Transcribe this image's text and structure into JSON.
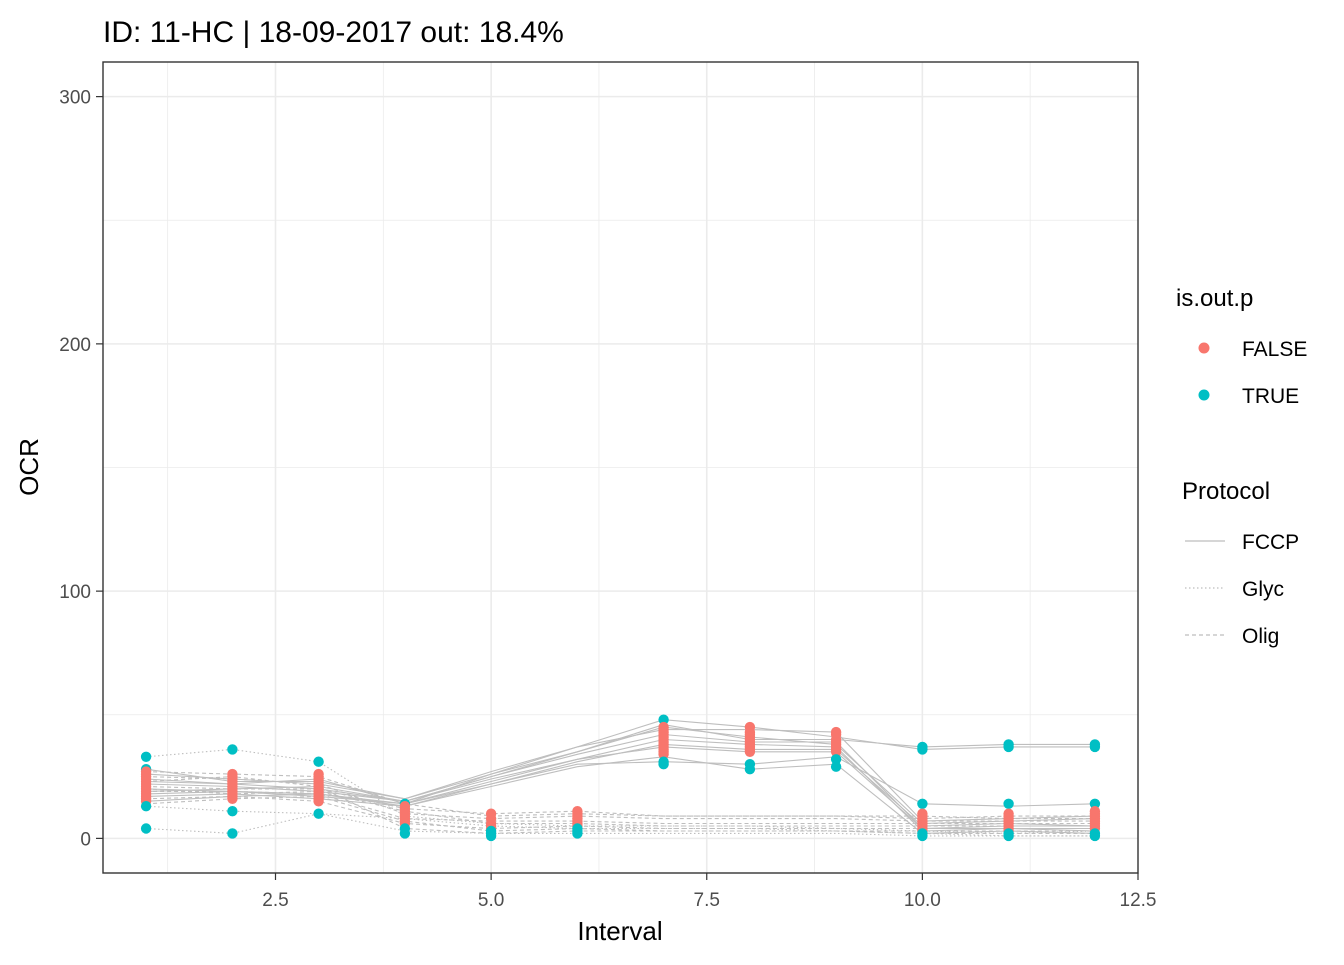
{
  "chart_data": {
    "type": "line",
    "title": "ID: 11-HC | 18-09-2017  out: 18.4%",
    "xlabel": "Interval",
    "ylabel": "OCR",
    "xlim": [
      0.5,
      12.5
    ],
    "ylim": [
      -14,
      314
    ],
    "x_ticks": [
      2.5,
      5.0,
      7.5,
      10.0,
      12.5
    ],
    "x_tick_labels": [
      "2.5",
      "5.0",
      "7.5",
      "10.0",
      "12.5"
    ],
    "y_ticks": [
      0,
      100,
      200,
      300
    ],
    "y_tick_labels": [
      "0",
      "100",
      "200",
      "300"
    ],
    "grid": true,
    "x": [
      1,
      2,
      3,
      4,
      5,
      6,
      7,
      8,
      9,
      10,
      11,
      12
    ],
    "series": [
      {
        "protocol": "FCCP",
        "values": [
          24,
          22,
          20,
          15,
          25,
          34,
          42,
          39,
          39,
          4,
          5,
          5
        ]
      },
      {
        "protocol": "FCCP",
        "values": [
          20,
          19,
          18,
          14,
          23,
          32,
          40,
          38,
          37,
          3,
          4,
          4
        ]
      },
      {
        "protocol": "FCCP",
        "values": [
          17,
          18,
          16,
          13,
          22,
          31,
          38,
          36,
          36,
          5,
          6,
          5
        ]
      },
      {
        "protocol": "FCCP",
        "values": [
          22,
          21,
          19,
          15,
          25,
          35,
          45,
          41,
          38,
          6,
          7,
          8
        ]
      },
      {
        "protocol": "FCCP",
        "values": [
          26,
          24,
          22,
          16,
          27,
          37,
          44,
          44,
          43,
          7,
          8,
          9
        ]
      },
      {
        "protocol": "FCCP",
        "values": [
          19,
          20,
          21,
          15,
          24,
          32,
          37,
          35,
          35,
          4,
          4,
          3
        ]
      },
      {
        "protocol": "FCCP",
        "values": [
          15,
          17,
          18,
          13,
          21,
          29,
          33,
          28,
          30,
          2,
          3,
          2
        ]
      },
      {
        "protocol": "FCCP",
        "values": [
          28,
          23,
          23,
          16,
          26,
          35,
          46,
          40,
          40,
          37,
          38,
          38
        ]
      },
      {
        "protocol": "FCCP",
        "values": [
          23,
          22,
          24,
          14,
          26,
          37,
          48,
          45,
          41,
          36,
          37,
          37
        ]
      },
      {
        "protocol": "FCCP",
        "values": [
          18,
          19,
          17,
          14,
          22,
          30,
          31,
          30,
          33,
          14,
          13,
          14
        ]
      },
      {
        "protocol": "Glyc",
        "values": [
          33,
          36,
          31,
          9,
          6,
          5,
          5,
          5,
          4,
          3,
          2,
          3
        ]
      },
      {
        "protocol": "Glyc",
        "values": [
          13,
          11,
          10,
          8,
          5,
          4,
          4,
          4,
          3,
          2,
          1,
          1
        ]
      },
      {
        "protocol": "Glyc",
        "values": [
          4,
          2,
          10,
          3,
          2,
          2,
          2,
          2,
          2,
          1,
          1,
          1
        ]
      },
      {
        "protocol": "Olig",
        "values": [
          25,
          24,
          22,
          10,
          8,
          9,
          8,
          8,
          8,
          7,
          7,
          7
        ]
      },
      {
        "protocol": "Olig",
        "values": [
          21,
          20,
          20,
          12,
          10,
          11,
          9,
          9,
          9,
          8,
          9,
          9
        ]
      },
      {
        "protocol": "Olig",
        "values": [
          19,
          19,
          18,
          8,
          7,
          7,
          6,
          6,
          6,
          6,
          6,
          6
        ]
      },
      {
        "protocol": "Olig",
        "values": [
          16,
          17,
          15,
          6,
          4,
          5,
          4,
          4,
          4,
          4,
          4,
          4
        ]
      },
      {
        "protocol": "Olig",
        "values": [
          23,
          25,
          21,
          4,
          2,
          3,
          3,
          3,
          3,
          2,
          2,
          2
        ]
      },
      {
        "protocol": "Olig",
        "values": [
          27,
          26,
          25,
          14,
          9,
          10,
          9,
          9,
          9,
          9,
          8,
          8
        ]
      },
      {
        "protocol": "Olig",
        "values": [
          14,
          16,
          17,
          7,
          3,
          4,
          3,
          3,
          3,
          3,
          3,
          3
        ]
      },
      {
        "protocol": "Olig",
        "values": [
          20,
          18,
          19,
          11,
          6,
          6,
          5,
          5,
          5,
          5,
          5,
          5
        ]
      }
    ],
    "points": [
      {
        "x": 1,
        "y": 33,
        "out": true
      },
      {
        "x": 1,
        "y": 28,
        "out": true
      },
      {
        "x": 1,
        "y": 27,
        "out": false
      },
      {
        "x": 1,
        "y": 26,
        "out": false
      },
      {
        "x": 1,
        "y": 25,
        "out": false
      },
      {
        "x": 1,
        "y": 24,
        "out": false
      },
      {
        "x": 1,
        "y": 23,
        "out": false
      },
      {
        "x": 1,
        "y": 22,
        "out": false
      },
      {
        "x": 1,
        "y": 21,
        "out": false
      },
      {
        "x": 1,
        "y": 20,
        "out": false
      },
      {
        "x": 1,
        "y": 19,
        "out": false
      },
      {
        "x": 1,
        "y": 18,
        "out": false
      },
      {
        "x": 1,
        "y": 17,
        "out": false
      },
      {
        "x": 1,
        "y": 16,
        "out": false
      },
      {
        "x": 1,
        "y": 15,
        "out": false
      },
      {
        "x": 1,
        "y": 13,
        "out": true
      },
      {
        "x": 1,
        "y": 4,
        "out": true
      },
      {
        "x": 2,
        "y": 36,
        "out": true
      },
      {
        "x": 2,
        "y": 26,
        "out": false
      },
      {
        "x": 2,
        "y": 25,
        "out": false
      },
      {
        "x": 2,
        "y": 24,
        "out": false
      },
      {
        "x": 2,
        "y": 23,
        "out": false
      },
      {
        "x": 2,
        "y": 22,
        "out": false
      },
      {
        "x": 2,
        "y": 21,
        "out": false
      },
      {
        "x": 2,
        "y": 20,
        "out": false
      },
      {
        "x": 2,
        "y": 19,
        "out": false
      },
      {
        "x": 2,
        "y": 18,
        "out": false
      },
      {
        "x": 2,
        "y": 17,
        "out": false
      },
      {
        "x": 2,
        "y": 16,
        "out": false
      },
      {
        "x": 2,
        "y": 11,
        "out": true
      },
      {
        "x": 2,
        "y": 2,
        "out": true
      },
      {
        "x": 3,
        "y": 31,
        "out": true
      },
      {
        "x": 3,
        "y": 26,
        "out": false
      },
      {
        "x": 3,
        "y": 25,
        "out": false
      },
      {
        "x": 3,
        "y": 24,
        "out": false
      },
      {
        "x": 3,
        "y": 23,
        "out": false
      },
      {
        "x": 3,
        "y": 22,
        "out": false
      },
      {
        "x": 3,
        "y": 21,
        "out": false
      },
      {
        "x": 3,
        "y": 20,
        "out": false
      },
      {
        "x": 3,
        "y": 19,
        "out": false
      },
      {
        "x": 3,
        "y": 18,
        "out": false
      },
      {
        "x": 3,
        "y": 17,
        "out": false
      },
      {
        "x": 3,
        "y": 16,
        "out": false
      },
      {
        "x": 3,
        "y": 15,
        "out": false
      },
      {
        "x": 3,
        "y": 10,
        "out": true
      },
      {
        "x": 4,
        "y": 14,
        "out": true
      },
      {
        "x": 4,
        "y": 13,
        "out": false
      },
      {
        "x": 4,
        "y": 12,
        "out": false
      },
      {
        "x": 4,
        "y": 11,
        "out": false
      },
      {
        "x": 4,
        "y": 10,
        "out": false
      },
      {
        "x": 4,
        "y": 9,
        "out": false
      },
      {
        "x": 4,
        "y": 8,
        "out": false
      },
      {
        "x": 4,
        "y": 7,
        "out": false
      },
      {
        "x": 4,
        "y": 6,
        "out": false
      },
      {
        "x": 4,
        "y": 4,
        "out": true
      },
      {
        "x": 4,
        "y": 2,
        "out": true
      },
      {
        "x": 5,
        "y": 10,
        "out": false
      },
      {
        "x": 5,
        "y": 8,
        "out": false
      },
      {
        "x": 5,
        "y": 6,
        "out": false
      },
      {
        "x": 5,
        "y": 5,
        "out": false
      },
      {
        "x": 5,
        "y": 4,
        "out": false
      },
      {
        "x": 5,
        "y": 3,
        "out": true
      },
      {
        "x": 5,
        "y": 2,
        "out": true
      },
      {
        "x": 5,
        "y": 1,
        "out": true
      },
      {
        "x": 6,
        "y": 11,
        "out": false
      },
      {
        "x": 6,
        "y": 10,
        "out": false
      },
      {
        "x": 6,
        "y": 9,
        "out": false
      },
      {
        "x": 6,
        "y": 8,
        "out": false
      },
      {
        "x": 6,
        "y": 7,
        "out": false
      },
      {
        "x": 6,
        "y": 6,
        "out": false
      },
      {
        "x": 6,
        "y": 5,
        "out": false
      },
      {
        "x": 6,
        "y": 4,
        "out": true
      },
      {
        "x": 6,
        "y": 3,
        "out": true
      },
      {
        "x": 6,
        "y": 2,
        "out": true
      },
      {
        "x": 7,
        "y": 48,
        "out": true
      },
      {
        "x": 7,
        "y": 45,
        "out": false
      },
      {
        "x": 7,
        "y": 44,
        "out": false
      },
      {
        "x": 7,
        "y": 43,
        "out": false
      },
      {
        "x": 7,
        "y": 42,
        "out": false
      },
      {
        "x": 7,
        "y": 41,
        "out": false
      },
      {
        "x": 7,
        "y": 40,
        "out": false
      },
      {
        "x": 7,
        "y": 39,
        "out": false
      },
      {
        "x": 7,
        "y": 38,
        "out": false
      },
      {
        "x": 7,
        "y": 37,
        "out": false
      },
      {
        "x": 7,
        "y": 36,
        "out": false
      },
      {
        "x": 7,
        "y": 35,
        "out": false
      },
      {
        "x": 7,
        "y": 34,
        "out": false
      },
      {
        "x": 7,
        "y": 31,
        "out": true
      },
      {
        "x": 7,
        "y": 30,
        "out": true
      },
      {
        "x": 8,
        "y": 45,
        "out": false
      },
      {
        "x": 8,
        "y": 43,
        "out": false
      },
      {
        "x": 8,
        "y": 42,
        "out": false
      },
      {
        "x": 8,
        "y": 41,
        "out": false
      },
      {
        "x": 8,
        "y": 40,
        "out": false
      },
      {
        "x": 8,
        "y": 39,
        "out": false
      },
      {
        "x": 8,
        "y": 38,
        "out": false
      },
      {
        "x": 8,
        "y": 37,
        "out": false
      },
      {
        "x": 8,
        "y": 36,
        "out": false
      },
      {
        "x": 8,
        "y": 35,
        "out": false
      },
      {
        "x": 8,
        "y": 30,
        "out": true
      },
      {
        "x": 8,
        "y": 28,
        "out": true
      },
      {
        "x": 9,
        "y": 43,
        "out": false
      },
      {
        "x": 9,
        "y": 42,
        "out": false
      },
      {
        "x": 9,
        "y": 40,
        "out": false
      },
      {
        "x": 9,
        "y": 39,
        "out": false
      },
      {
        "x": 9,
        "y": 38,
        "out": false
      },
      {
        "x": 9,
        "y": 37,
        "out": false
      },
      {
        "x": 9,
        "y": 36,
        "out": false
      },
      {
        "x": 9,
        "y": 35,
        "out": false
      },
      {
        "x": 9,
        "y": 32,
        "out": true
      },
      {
        "x": 9,
        "y": 29,
        "out": true
      },
      {
        "x": 10,
        "y": 37,
        "out": true
      },
      {
        "x": 10,
        "y": 36,
        "out": true
      },
      {
        "x": 10,
        "y": 14,
        "out": true
      },
      {
        "x": 10,
        "y": 10,
        "out": false
      },
      {
        "x": 10,
        "y": 9,
        "out": false
      },
      {
        "x": 10,
        "y": 8,
        "out": false
      },
      {
        "x": 10,
        "y": 7,
        "out": false
      },
      {
        "x": 10,
        "y": 6,
        "out": false
      },
      {
        "x": 10,
        "y": 5,
        "out": false
      },
      {
        "x": 10,
        "y": 4,
        "out": false
      },
      {
        "x": 10,
        "y": 3,
        "out": false
      },
      {
        "x": 10,
        "y": 2,
        "out": true
      },
      {
        "x": 10,
        "y": 1,
        "out": true
      },
      {
        "x": 11,
        "y": 38,
        "out": true
      },
      {
        "x": 11,
        "y": 37,
        "out": true
      },
      {
        "x": 11,
        "y": 14,
        "out": true
      },
      {
        "x": 11,
        "y": 10,
        "out": false
      },
      {
        "x": 11,
        "y": 9,
        "out": false
      },
      {
        "x": 11,
        "y": 8,
        "out": false
      },
      {
        "x": 11,
        "y": 7,
        "out": false
      },
      {
        "x": 11,
        "y": 6,
        "out": false
      },
      {
        "x": 11,
        "y": 5,
        "out": false
      },
      {
        "x": 11,
        "y": 4,
        "out": false
      },
      {
        "x": 11,
        "y": 3,
        "out": false
      },
      {
        "x": 11,
        "y": 2,
        "out": true
      },
      {
        "x": 11,
        "y": 1,
        "out": true
      },
      {
        "x": 12,
        "y": 38,
        "out": true
      },
      {
        "x": 12,
        "y": 37,
        "out": true
      },
      {
        "x": 12,
        "y": 14,
        "out": true
      },
      {
        "x": 12,
        "y": 11,
        "out": false
      },
      {
        "x": 12,
        "y": 10,
        "out": false
      },
      {
        "x": 12,
        "y": 9,
        "out": false
      },
      {
        "x": 12,
        "y": 8,
        "out": false
      },
      {
        "x": 12,
        "y": 7,
        "out": false
      },
      {
        "x": 12,
        "y": 6,
        "out": false
      },
      {
        "x": 12,
        "y": 5,
        "out": false
      },
      {
        "x": 12,
        "y": 4,
        "out": false
      },
      {
        "x": 12,
        "y": 2,
        "out": true
      },
      {
        "x": 12,
        "y": 1,
        "out": true
      }
    ],
    "legend_color": {
      "title": "is.out.p",
      "entries": [
        {
          "label": "FALSE",
          "color": "#F8766D"
        },
        {
          "label": "TRUE",
          "color": "#00BFC4"
        }
      ]
    },
    "legend_linetype": {
      "title": "Protocol",
      "entries": [
        {
          "label": "FCCP",
          "linetype": "solid"
        },
        {
          "label": "Glyc",
          "linetype": "dotted"
        },
        {
          "label": "Olig",
          "linetype": "dashed"
        }
      ]
    },
    "legend_position": "right",
    "line_color": "#BEBEBE"
  }
}
